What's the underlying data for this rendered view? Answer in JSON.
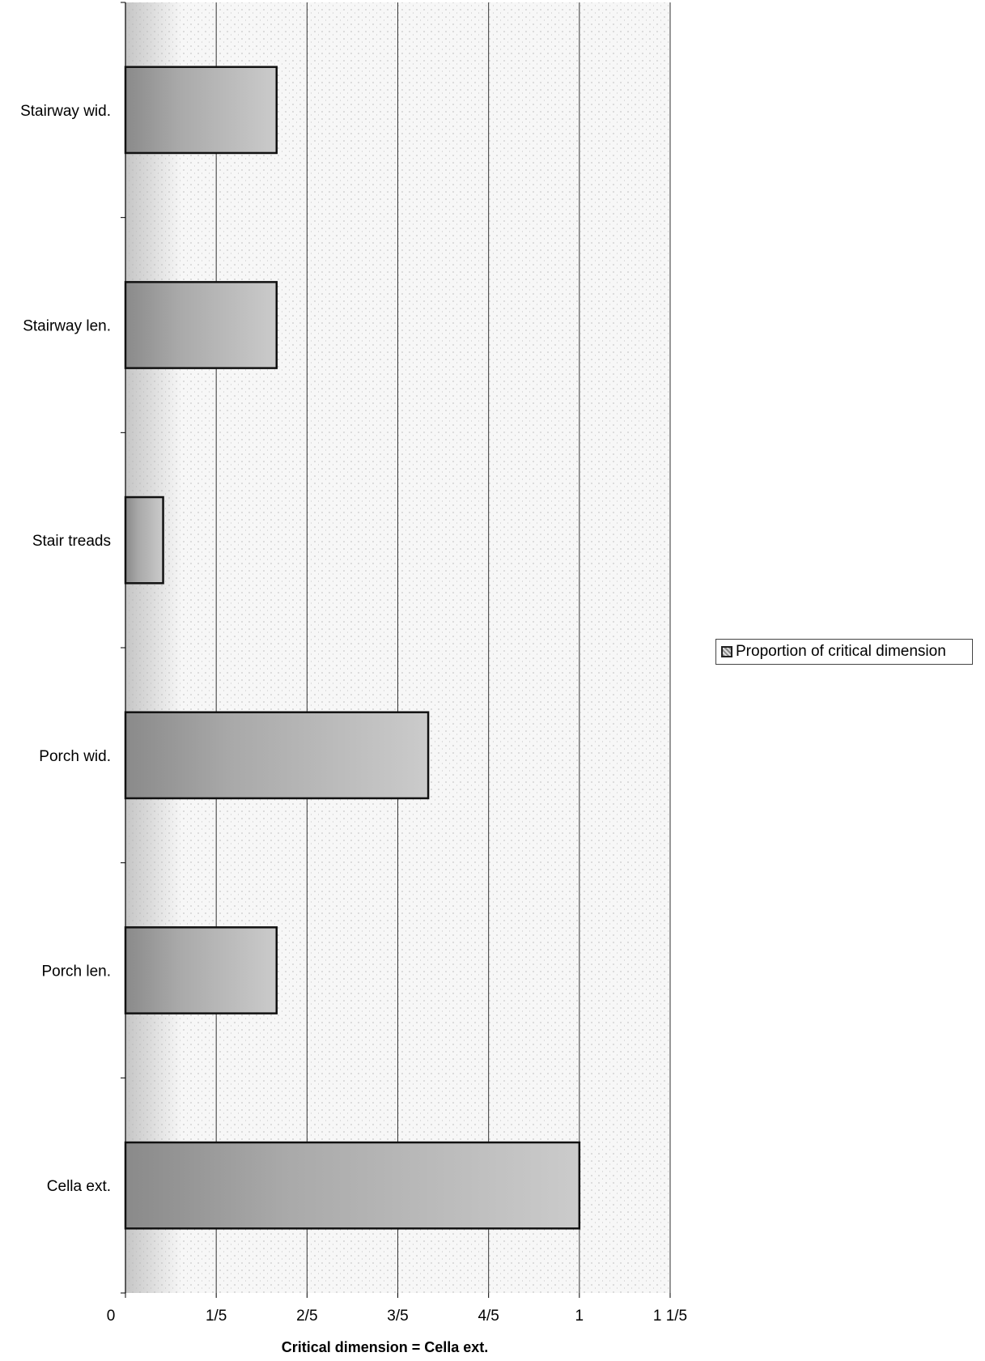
{
  "chart_data": {
    "type": "bar",
    "orientation": "horizontal",
    "categories": [
      "Cella ext.",
      "Porch len.",
      "Porch wid.",
      "Stair treads",
      "Stairway len.",
      "Stairway wid."
    ],
    "series": [
      {
        "name": "Proportion of critical dimension",
        "values": [
          1.0,
          0.333,
          0.667,
          0.083,
          0.333,
          0.333
        ]
      }
    ],
    "xlabel": "Critical dimension = Cella ext.",
    "ylabel": "",
    "xlim": [
      0,
      1.2
    ],
    "xticks": [
      {
        "value": 0,
        "label": "0"
      },
      {
        "value": 0.2,
        "label": "1/5"
      },
      {
        "value": 0.4,
        "label": "2/5"
      },
      {
        "value": 0.6,
        "label": "3/5"
      },
      {
        "value": 0.8,
        "label": "4/5"
      },
      {
        "value": 1.0,
        "label": "1"
      },
      {
        "value": 1.2,
        "label": "1 1/5"
      }
    ],
    "grid": "vertical",
    "legend_position": "right",
    "colors": {
      "bar_fill": "#9a9a9a",
      "bar_stroke": "#111111",
      "plot_bg": "#f4f4f4",
      "grid": "#333333"
    }
  }
}
